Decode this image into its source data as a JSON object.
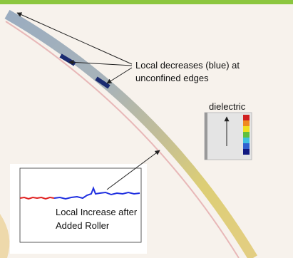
{
  "annotations": {
    "decreases": [
      "Local decreases (blue) at",
      "unconfined edges"
    ],
    "increase": [
      "Local Increase after",
      "Added Roller"
    ]
  },
  "legend": {
    "title": "dielectric"
  }
}
